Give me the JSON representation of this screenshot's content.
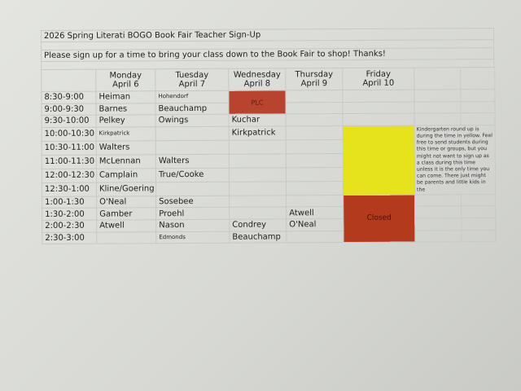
{
  "title": "2026 Spring Literati BOGO Book Fair Teacher Sign-Up",
  "subtitle": "Please sign up for a time to bring your class down to the Book Fair to shop!  Thanks!",
  "days": [
    {
      "day": "Monday",
      "date": "April 6"
    },
    {
      "day": "Tuesday",
      "date": "April 7"
    },
    {
      "day": "Wednesday",
      "date": "April 8"
    },
    {
      "day": "Thursday",
      "date": "April 9"
    },
    {
      "day": "Friday",
      "date": "April 10"
    }
  ],
  "rows": [
    {
      "time": "8:30-9:00",
      "mon": "Heiman",
      "tue": "Hohendorf",
      "wed": "PLC",
      "thu": ""
    },
    {
      "time": "9:00-9:30",
      "mon": "Barnes",
      "tue": "Beauchamp",
      "thu": ""
    },
    {
      "time": "9:30-10:00",
      "mon": "Pelkey",
      "tue": "Owings",
      "wed": "Kuchar",
      "thu": ""
    },
    {
      "time": "10:00-10:30",
      "mon": "Kirkpatrick",
      "tue": "",
      "wed": "Kirkpatrick",
      "thu": ""
    },
    {
      "time": "10:30-11:00",
      "mon": "Walters",
      "tue": "",
      "wed": "",
      "thu": ""
    },
    {
      "time": "11:00-11:30",
      "mon": "McLennan",
      "tue": "Walters",
      "wed": "",
      "thu": ""
    },
    {
      "time": "12:00-12:30",
      "mon": "Camplain",
      "tue": "True/Cooke",
      "wed": "",
      "thu": ""
    },
    {
      "time": "12:30-1:00",
      "mon": "Kline/Goering",
      "tue": "",
      "wed": "",
      "thu": ""
    },
    {
      "time": "1:00-1:30",
      "mon": "O'Neal",
      "tue": "Sosebee",
      "wed": "",
      "thu": ""
    },
    {
      "time": "1:30-2:00",
      "mon": "Gamber",
      "tue": "Proehl",
      "wed": "",
      "thu": "Atwell"
    },
    {
      "time": "2:00-2:30",
      "mon": "Atwell",
      "tue": "Nason",
      "wed": "Condrey",
      "thu": "O'Neal"
    },
    {
      "time": "2:30-3:00",
      "mon": "",
      "tue": "Edmonds",
      "wed": "Beauchamp",
      "thu": ""
    }
  ],
  "friday_closed": "Closed",
  "note": "Kindergarten round up is during the time in yellow.  Feel free to send students during this time or groups, but you might not want to sign up as a class during this time unless it is the only time you can come.  There just might be parents and little kids in the",
  "colors": {
    "plc": "#b8432f",
    "yellow": "#e6e21c",
    "closed": "#b33a1c"
  }
}
